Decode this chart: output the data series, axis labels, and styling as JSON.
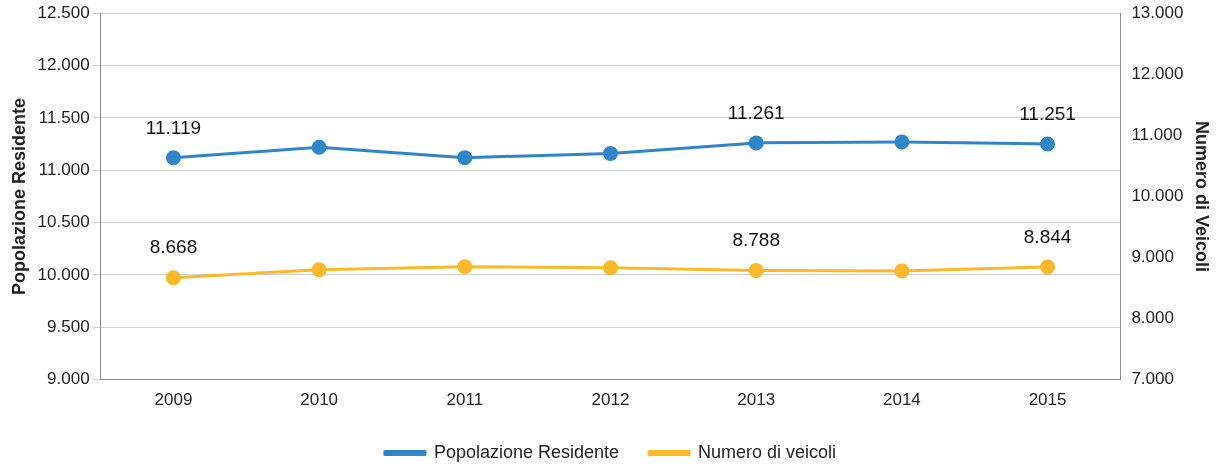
{
  "chart_data": {
    "type": "line",
    "categories": [
      "2009",
      "2010",
      "2011",
      "2012",
      "2013",
      "2014",
      "2015"
    ],
    "ylabel": "Popolazione Residente",
    "y2label": "Numero di Veicoli",
    "series": [
      {
        "name": "Popolazione Residente",
        "color": "#2e86c8",
        "values": [
          11119,
          11220,
          11120,
          11160,
          11261,
          11270,
          11251
        ],
        "value_labels": [
          "11.119",
          null,
          null,
          null,
          "11.261",
          null,
          "11.251"
        ]
      },
      {
        "name": "Numero di veicoli",
        "color": "#fbb829",
        "axis": "y2",
        "values": [
          8668,
          8800,
          8850,
          8830,
          8788,
          8780,
          8844
        ],
        "value_labels": [
          "8.668",
          null,
          null,
          null,
          "8.788",
          null,
          "8.844"
        ]
      }
    ],
    "ylim": [
      9000,
      12500
    ],
    "yticks": [
      {
        "value": 9000,
        "label": "9.000"
      },
      {
        "value": 9500,
        "label": "9.500"
      },
      {
        "value": 10000,
        "label": "10.000"
      },
      {
        "value": 10500,
        "label": "10.500"
      },
      {
        "value": 11000,
        "label": "11.000"
      },
      {
        "value": 11500,
        "label": "11.500"
      },
      {
        "value": 12000,
        "label": "12.000"
      },
      {
        "value": 12500,
        "label": "12.500"
      }
    ],
    "y2lim": [
      7000,
      13000
    ],
    "y2ticks": [
      {
        "value": 7000,
        "label": "7.000"
      },
      {
        "value": 8000,
        "label": "8.000"
      },
      {
        "value": 9000,
        "label": "9.000"
      },
      {
        "value": 10000,
        "label": "10.000"
      },
      {
        "value": 11000,
        "label": "11.000"
      },
      {
        "value": 12000,
        "label": "12.000"
      },
      {
        "value": 13000,
        "label": "13.000"
      }
    ],
    "grid": "y",
    "legend": "bottom",
    "marker": "circle",
    "line_style": "solid"
  }
}
